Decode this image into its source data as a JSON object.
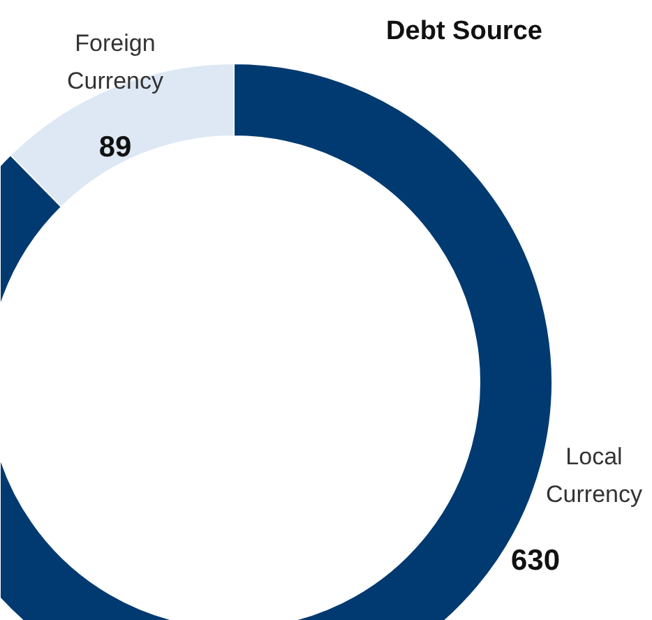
{
  "chart_data": {
    "type": "donut",
    "title": "Debt Source",
    "categories": [
      "Local Currency",
      "Foreign Currency"
    ],
    "values": [
      630,
      89
    ],
    "colors": [
      "#003a70",
      "#dde8f4"
    ],
    "data_labels": true
  }
}
